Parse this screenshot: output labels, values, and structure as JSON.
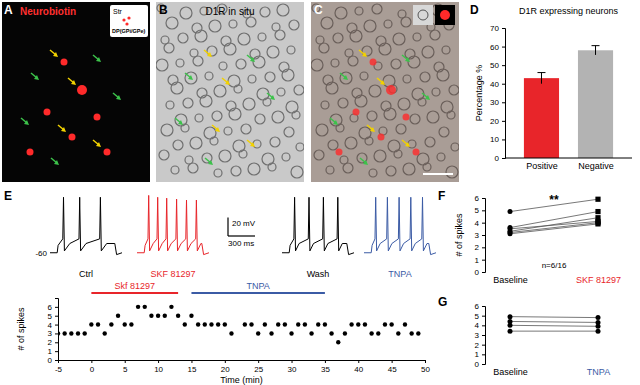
{
  "panel_labels": [
    "A",
    "B",
    "C",
    "D",
    "E",
    "F",
    "G"
  ],
  "image_panels": [
    {
      "title": "Neurobiotin",
      "inset": [
        "Str",
        "DP(GPi/GPe)"
      ]
    },
    {
      "title": "D1R in situ"
    }
  ],
  "chart_data": [
    {
      "type": "bar",
      "title": "D1R expressing neurons",
      "y_label": "Percentage %",
      "categories": [
        "Positive",
        "Negative"
      ],
      "values": [
        43,
        58
      ],
      "errors": [
        3,
        2.5
      ],
      "colors": [
        "#e8252a",
        "#b3b3b3"
      ],
      "ylim": [
        0,
        70
      ],
      "yticks": [
        0,
        10,
        20,
        30,
        40,
        50,
        60,
        70
      ]
    },
    {
      "type": "line",
      "tick_labels": false,
      "xlim": [
        0,
        800
      ],
      "ylim": [
        -70,
        10
      ],
      "series": [
        {
          "name": "Ctrl",
          "color": "#000000",
          "x": [
            0,
            80,
            90,
            142,
            150,
            160,
            220,
            322,
            330,
            340,
            400,
            552,
            560,
            570,
            630,
            720,
            740,
            800
          ],
          "values": [
            -60,
            -60,
            -52,
            -45,
            0,
            -58,
            -50,
            -45,
            0,
            -58,
            -50,
            -45,
            0,
            -58,
            -50,
            -50,
            -62,
            -60
          ]
        },
        {
          "name": "SKF 81297",
          "color": "#e8252a",
          "x": [
            0,
            80,
            90,
            122,
            130,
            140,
            180,
            222,
            230,
            240,
            280,
            322,
            330,
            340,
            380,
            432,
            440,
            450,
            490,
            542,
            550,
            560,
            600,
            652,
            660,
            670,
            710,
            720,
            740,
            800
          ],
          "values": [
            -60,
            -60,
            -52,
            -45,
            2,
            -58,
            -50,
            -45,
            0,
            -58,
            -50,
            -45,
            -1,
            -58,
            -50,
            -45,
            -2,
            -58,
            -50,
            -45,
            -3,
            -58,
            -50,
            -45,
            -3,
            -58,
            -50,
            -50,
            -62,
            -60
          ]
        },
        {
          "name": "Wash",
          "color": "#000000",
          "x": [
            0,
            80,
            90,
            132,
            140,
            150,
            190,
            292,
            300,
            310,
            350,
            452,
            460,
            470,
            510,
            612,
            620,
            630,
            670,
            720,
            740,
            800
          ],
          "values": [
            -60,
            -60,
            -52,
            -45,
            0,
            -58,
            -50,
            -45,
            0,
            -58,
            -50,
            -45,
            0,
            -58,
            -50,
            -45,
            0,
            -58,
            -50,
            -50,
            -62,
            -60
          ]
        },
        {
          "name": "TNPA",
          "color": "#3b5ba5",
          "x": [
            0,
            80,
            90,
            122,
            130,
            140,
            180,
            252,
            260,
            270,
            310,
            382,
            390,
            400,
            440,
            512,
            520,
            530,
            570,
            642,
            650,
            660,
            700,
            720,
            740,
            800
          ],
          "values": [
            -60,
            -60,
            -52,
            -45,
            0,
            -58,
            -50,
            -45,
            0,
            -58,
            -50,
            -45,
            0,
            -58,
            -50,
            -45,
            0,
            -58,
            -50,
            -45,
            0,
            -58,
            -50,
            -50,
            -62,
            -60
          ]
        }
      ],
      "annotations": [
        {
          "text": "-60",
          "y": -60
        }
      ],
      "scale_bar": {
        "x": 300,
        "x_label": "300 ms",
        "y": 20,
        "y_label": "20 mV"
      }
    },
    {
      "type": "scatter",
      "x_label": "Time (min)",
      "y_label": "# of spikes",
      "x": [
        -5,
        -4,
        -3,
        -2,
        -1,
        0,
        1,
        2,
        3,
        4,
        5,
        6,
        7,
        8,
        9,
        10,
        11,
        12,
        13,
        14,
        15,
        16,
        17,
        18,
        19,
        20,
        21,
        23,
        24,
        25,
        26,
        27,
        28,
        29,
        30,
        31,
        32,
        33,
        34,
        35,
        36,
        37,
        38,
        39,
        40,
        41,
        42,
        43,
        44,
        45,
        46,
        47,
        48,
        49
      ],
      "values": [
        3,
        3,
        3,
        3,
        3,
        4,
        4,
        3,
        4,
        5,
        4,
        4,
        6,
        6,
        5,
        5,
        5,
        6,
        5,
        4,
        5,
        4,
        4,
        4,
        4,
        4,
        3,
        4,
        4,
        3,
        4,
        3,
        4,
        4,
        3,
        4,
        4,
        3,
        4,
        4,
        3,
        2,
        3,
        4,
        4,
        4,
        3,
        3,
        4,
        4,
        3,
        4,
        3,
        3
      ],
      "xlim": [
        -5,
        50
      ],
      "xticks": [
        -5,
        0,
        5,
        10,
        15,
        20,
        25,
        30,
        35,
        40,
        45,
        50
      ],
      "ylim": [
        0,
        7
      ],
      "yticks": [
        0,
        1,
        2,
        3,
        4,
        5,
        6
      ],
      "marker": "circle",
      "color": "#000000",
      "periods": [
        {
          "label": "Skf 81297",
          "start": 0,
          "end": 13,
          "color": "#e8252a"
        },
        {
          "label": "TNPA",
          "start": 15,
          "end": 35,
          "color": "#3b5ba5"
        }
      ]
    },
    {
      "type": "line",
      "y_label": "# of spikes",
      "categories": [
        "Baseline",
        "SKF 81297"
      ],
      "series": [
        {
          "values": [
            4.9,
            5.9
          ]
        },
        {
          "values": [
            3.6,
            4.9
          ]
        },
        {
          "values": [
            3.5,
            4.1
          ]
        },
        {
          "values": [
            3.3,
            4.4
          ]
        },
        {
          "values": [
            3.2,
            4.0
          ]
        },
        {
          "values": [
            3.1,
            3.9
          ]
        }
      ],
      "ylim": [
        0,
        6
      ],
      "yticks": [
        0,
        1,
        2,
        3,
        4,
        5,
        6
      ],
      "marker": "square",
      "color": "#e8252a",
      "annotations": [
        {
          "text": "**"
        },
        {
          "text": "n=6/16"
        }
      ]
    },
    {
      "type": "line",
      "categories": [
        "Baseline",
        "TNPA"
      ],
      "series": [
        {
          "values": [
            4.9,
            4.8
          ]
        },
        {
          "values": [
            4.4,
            4.3
          ]
        },
        {
          "values": [
            4.0,
            3.9
          ]
        },
        {
          "values": [
            3.4,
            3.4
          ]
        }
      ],
      "ylim": [
        0,
        6
      ],
      "yticks": [
        0,
        1,
        2,
        3,
        4,
        5,
        6
      ],
      "marker": "circle",
      "color": "#3b5ba5"
    }
  ]
}
